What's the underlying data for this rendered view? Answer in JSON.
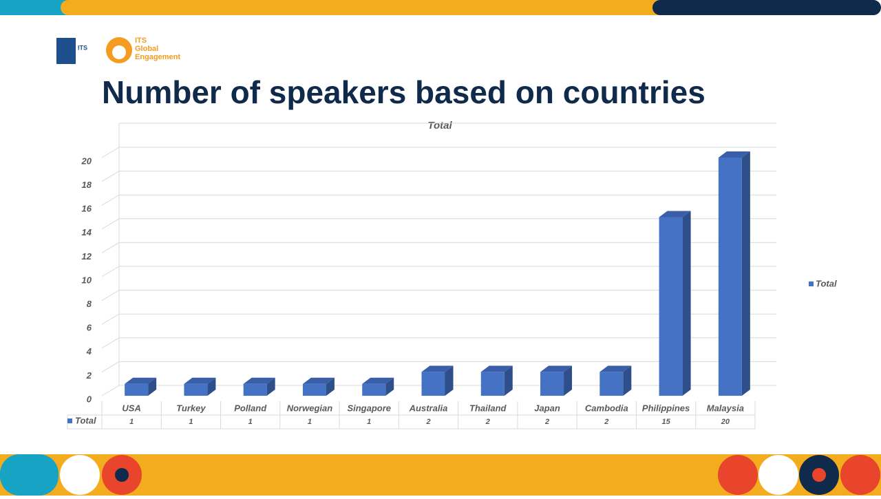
{
  "slide_title": "Number of speakers based on countries",
  "logo": {
    "its": "ITS",
    "engagement": [
      "ITS",
      "Global",
      "Engagement"
    ]
  },
  "chart_data": {
    "type": "bar3d",
    "title": "Total",
    "categories": [
      "USA",
      "Turkey",
      "Polland",
      "Norwegian",
      "Singapore",
      "Australia",
      "Thailand",
      "Japan",
      "Cambodia",
      "Philippines",
      "Malaysia"
    ],
    "series": [
      {
        "name": "Total",
        "color": "#4472c4",
        "values": [
          1,
          1,
          1,
          1,
          1,
          2,
          2,
          2,
          2,
          15,
          20
        ]
      }
    ],
    "ylim": [
      0,
      20
    ],
    "yticks": [
      0,
      2,
      4,
      6,
      8,
      10,
      12,
      14,
      16,
      18,
      20
    ],
    "grid": true,
    "legend": "right",
    "data_table": true
  }
}
